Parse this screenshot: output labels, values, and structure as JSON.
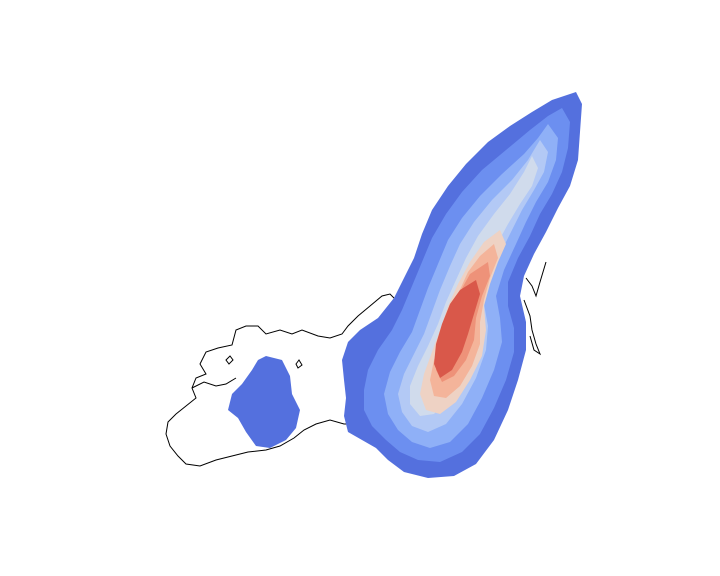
{
  "map": {
    "type": "kde-density-overlay",
    "base_layer": "island-outline",
    "density_levels": 9,
    "colors": {
      "background": "#ffffff",
      "outline": "#000000",
      "levels": [
        "#5470de",
        "#6c8ff0",
        "#8fb0f7",
        "#b3c9f5",
        "#d0dbec",
        "#eed2c4",
        "#f4b49a",
        "#ee9279",
        "#d9584a"
      ]
    }
  }
}
